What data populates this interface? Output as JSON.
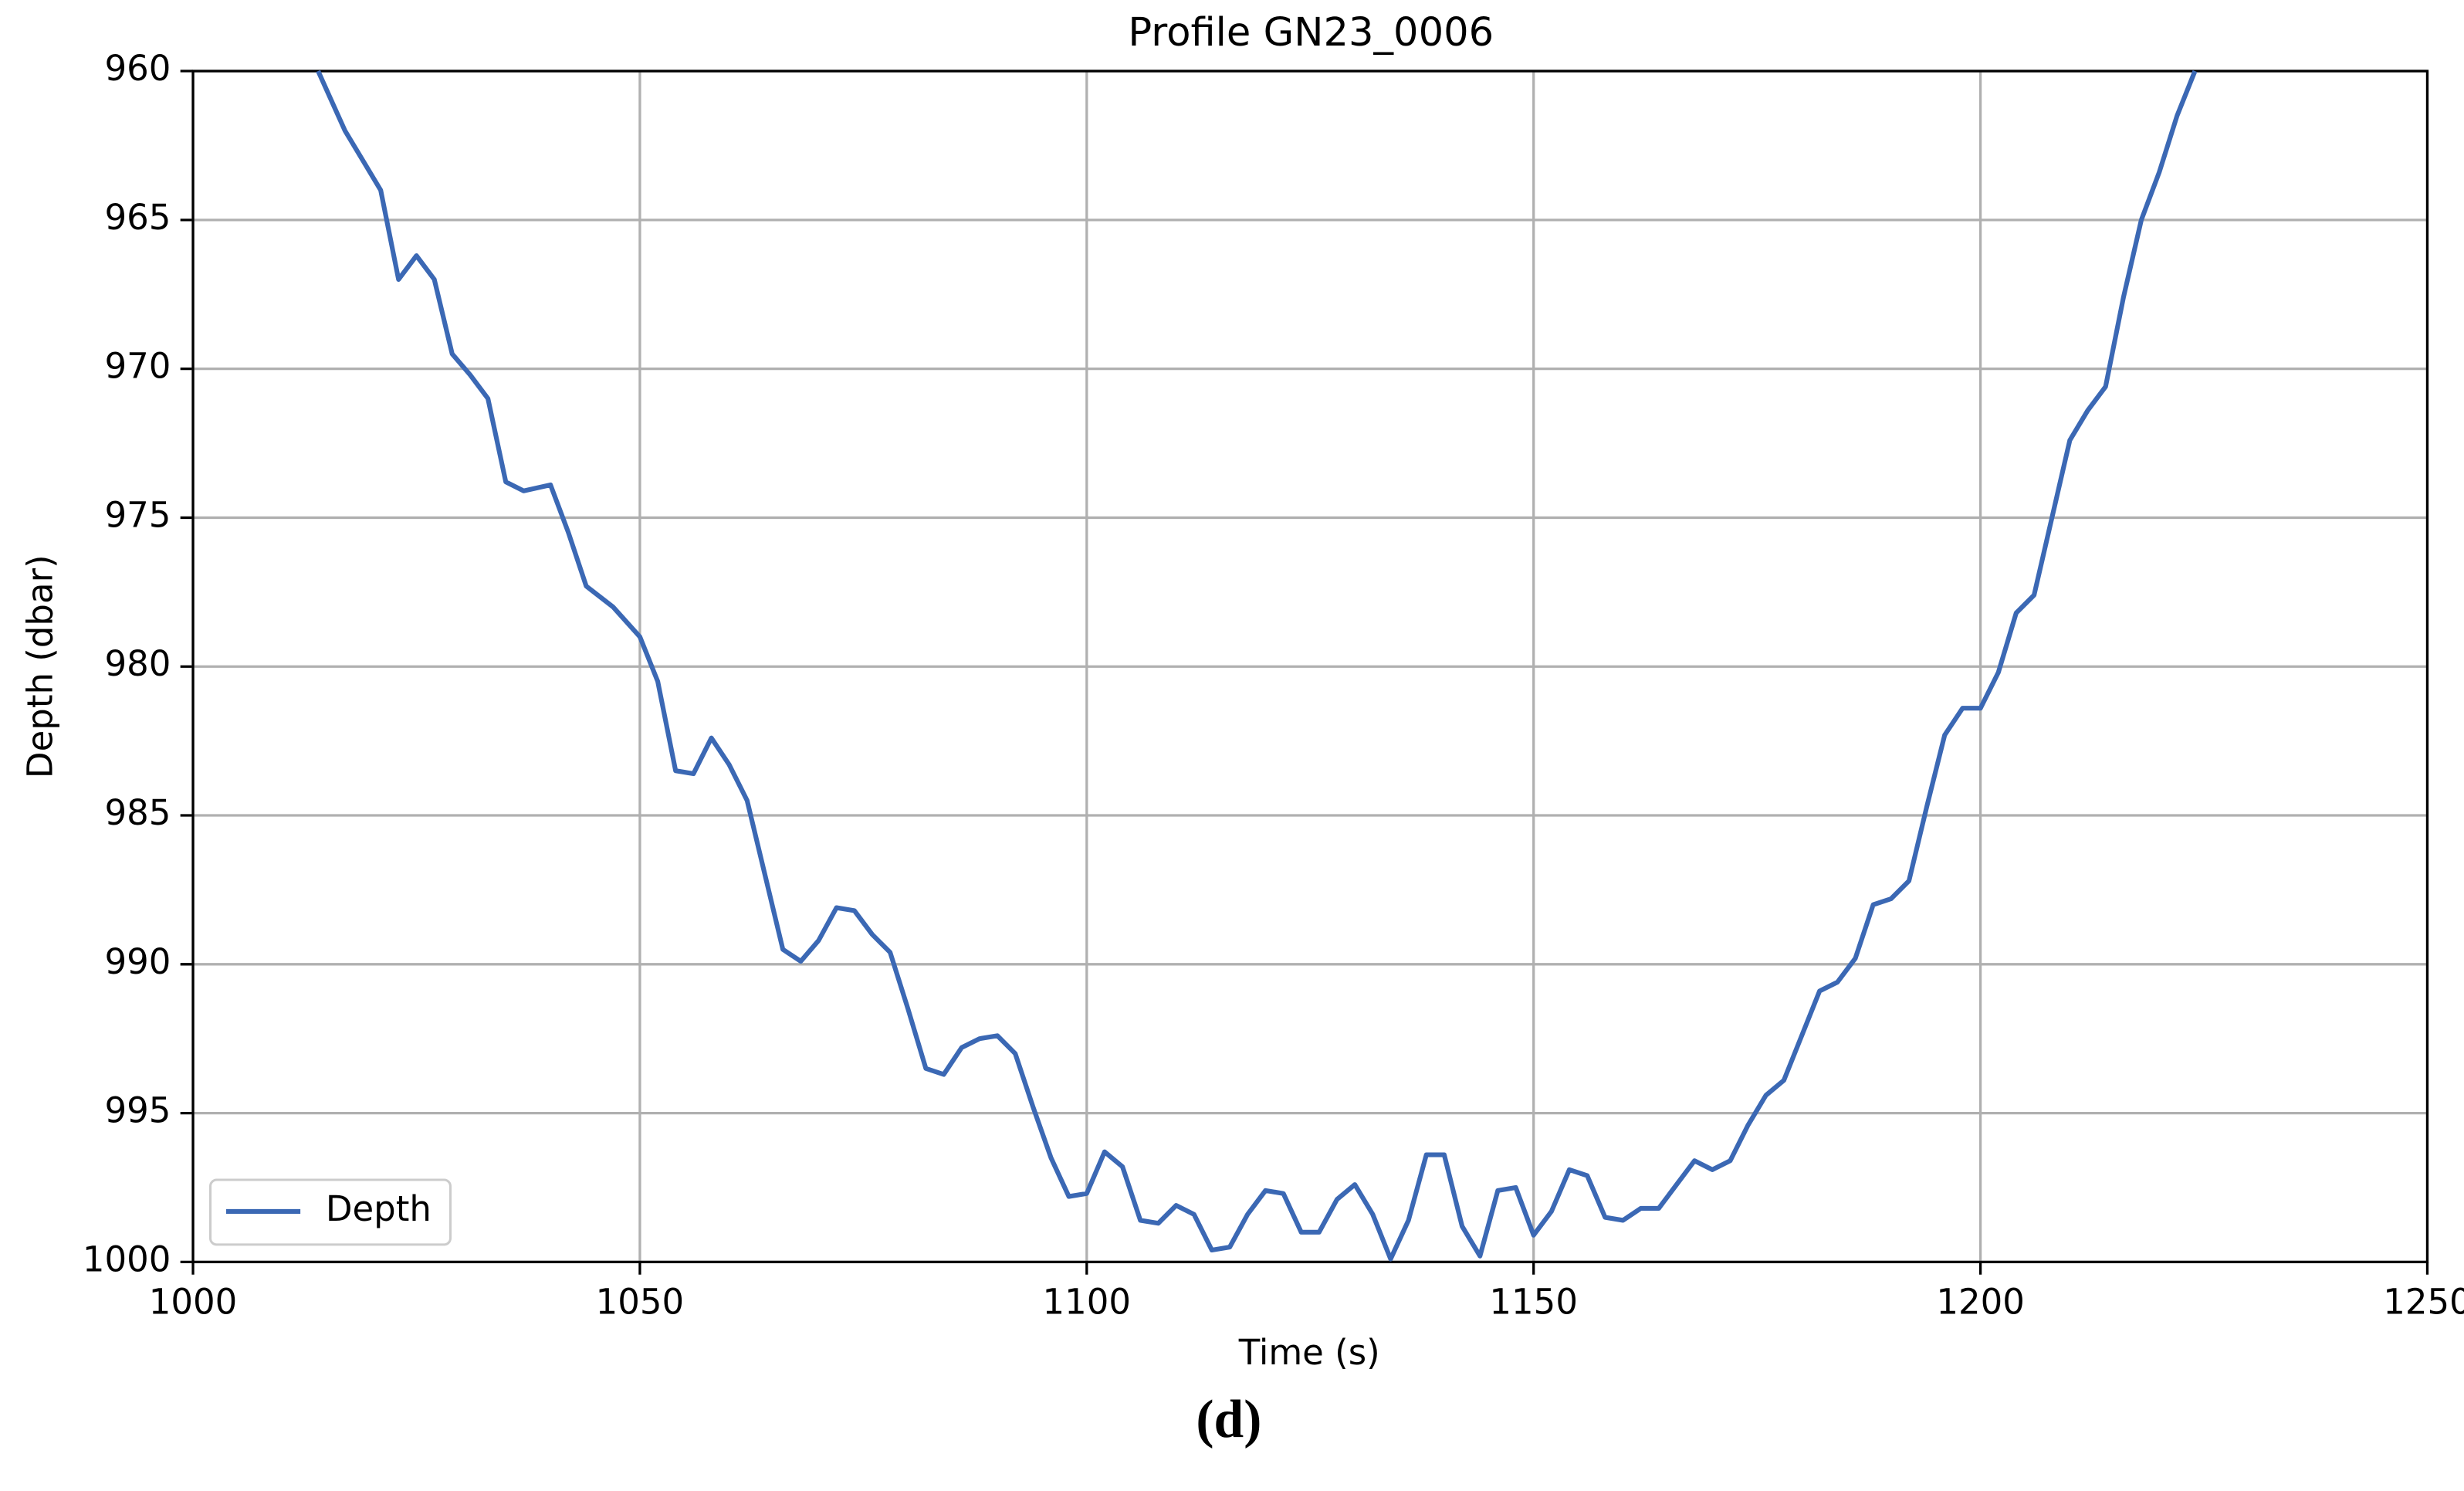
{
  "chart_data": {
    "type": "line",
    "title": "Profile GN23_0006",
    "xlabel": "Time (s)",
    "ylabel": "Depth (dbar)",
    "caption": "(d)",
    "xlim": [
      1000,
      1250
    ],
    "xticks": [
      1000,
      1050,
      1100,
      1150,
      1200,
      1250
    ],
    "ylim": [
      1000,
      960
    ],
    "yticks": [
      960,
      965,
      970,
      975,
      980,
      985,
      990,
      995,
      1000
    ],
    "grid": true,
    "legend": "lower left",
    "x": [
      1014,
      1017,
      1019,
      1021,
      1023,
      1025,
      1027,
      1029,
      1031,
      1033,
      1035,
      1037,
      1040,
      1042,
      1044,
      1047,
      1050,
      1052,
      1054,
      1056,
      1058,
      1060,
      1062,
      1064,
      1066,
      1068,
      1070,
      1072,
      1074,
      1076,
      1078,
      1080,
      1082,
      1084,
      1086,
      1088,
      1090,
      1092,
      1094,
      1096,
      1098,
      1100,
      1102,
      1104,
      1106,
      1108,
      1110,
      1112,
      1114,
      1116,
      1118,
      1120,
      1122,
      1124,
      1126,
      1128,
      1130,
      1132,
      1134,
      1136,
      1138,
      1140,
      1142,
      1144,
      1146,
      1148,
      1150,
      1152,
      1154,
      1156,
      1158,
      1160,
      1162,
      1164,
      1166,
      1168,
      1170,
      1172,
      1174,
      1176,
      1178,
      1180,
      1182,
      1184,
      1186,
      1188,
      1190,
      1192,
      1194,
      1196,
      1198,
      1200,
      1202,
      1204,
      1206,
      1208,
      1210,
      1212,
      1214,
      1216,
      1218,
      1220,
      1222,
      1224
    ],
    "series": [
      {
        "name": "Depth",
        "color": "#3b68b4",
        "values": [
          960,
          962,
          963,
          964,
          967,
          966.2,
          967,
          969.5,
          970.2,
          971,
          973.8,
          974.1,
          973.9,
          975.5,
          977.3,
          978,
          979,
          980.5,
          983.5,
          983.6,
          982.4,
          983.3,
          984.5,
          987,
          989.5,
          989.9,
          989.2,
          988.1,
          988.2,
          989,
          989.6,
          991.5,
          993.5,
          993.7,
          992.8,
          992.5,
          992.4,
          993,
          994.8,
          996.5,
          997.8,
          997.7,
          996.3,
          996.8,
          998.6,
          998.7,
          998.1,
          998.4,
          999.6,
          999.5,
          998.4,
          997.6,
          997.7,
          999,
          999,
          997.9,
          997.4,
          998.4,
          999.9,
          998.6,
          996.4,
          996.4,
          998.8,
          999.8,
          997.6,
          997.5,
          999.1,
          998.3,
          996.9,
          997.1,
          998.5,
          998.6,
          998.2,
          998.2,
          997.4,
          996.6,
          996.9,
          996.6,
          995.4,
          994.4,
          993.9,
          992.4,
          990.9,
          990.6,
          989.8,
          988,
          987.8,
          987.2,
          984.7,
          982.3,
          981.4,
          981.4,
          980.2,
          978.2,
          977.6,
          975,
          972.4,
          971.4,
          970.6,
          967.6,
          965,
          963.4,
          961.5,
          960
        ]
      }
    ]
  }
}
